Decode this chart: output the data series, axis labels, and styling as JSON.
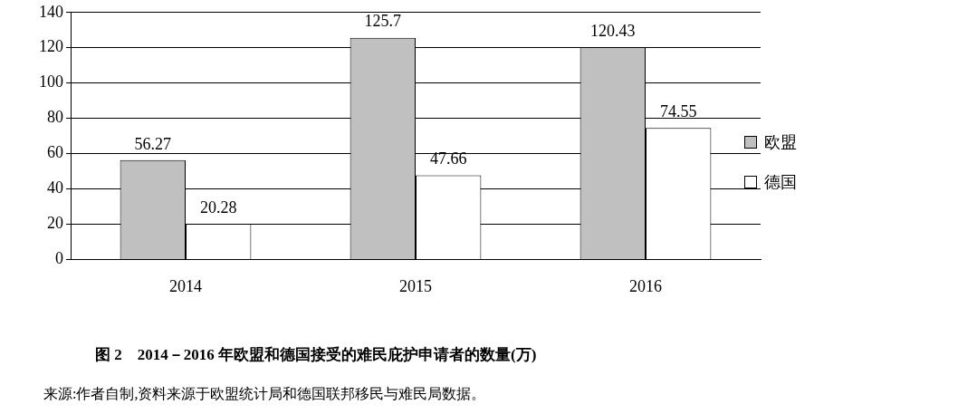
{
  "chart_data": {
    "type": "bar",
    "title": "图 2　2014－2016 年欧盟和德国接受的难民庇护申请者的数量(万)",
    "annotations": [
      "来源:作者自制,资料来源于欧盟统计局和德国联邦移民与难民局数据。"
    ],
    "categories": [
      "2014",
      "2015",
      "2016"
    ],
    "series": [
      {
        "name": "欧盟",
        "color": "#c0c0c0",
        "values": [
          56.27,
          125.7,
          120.43
        ]
      },
      {
        "name": "德国",
        "color": "#ffffff",
        "values": [
          20.28,
          47.66,
          74.55
        ]
      }
    ],
    "ylim": [
      0,
      140
    ],
    "yticks": [
      0,
      20,
      40,
      60,
      80,
      100,
      120,
      140
    ],
    "grid": "y",
    "legend": "right",
    "data_labels": true
  }
}
